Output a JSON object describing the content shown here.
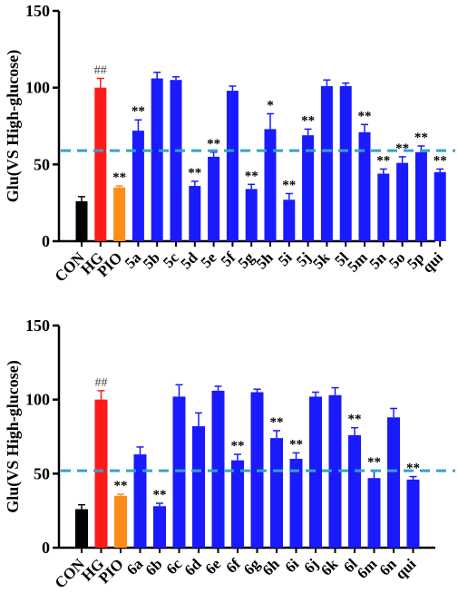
{
  "colors": {
    "control": "#000000",
    "high_glucose": "#ff1a1a",
    "pioglitazone": "#ff8c1a",
    "compound": "#1a1aff",
    "reference_line": "#3aa0c8",
    "axis": "#000000"
  },
  "chart_data": [
    {
      "type": "bar",
      "ylabel": "Glu(VS High-glucose)",
      "ylim": [
        0,
        150
      ],
      "yticks": [
        0,
        50,
        100,
        150
      ],
      "grid": false,
      "reference_line": 59,
      "categories": [
        "CON",
        "HG",
        "PIO",
        "5a",
        "5b",
        "5c",
        "5d",
        "5e",
        "5f",
        "5g",
        "5h",
        "5i",
        "5j",
        "5k",
        "5l",
        "5m",
        "5n",
        "5o",
        "5p",
        "qui"
      ],
      "values": [
        26,
        100,
        35,
        72,
        106,
        105,
        36,
        55,
        98,
        34,
        73,
        27,
        69,
        101,
        101,
        71,
        44,
        51,
        58,
        45
      ],
      "errors": [
        3,
        6,
        1,
        7,
        4,
        2,
        3,
        3,
        3,
        3,
        10,
        4,
        4,
        4,
        2,
        5,
        3,
        4,
        4,
        2
      ],
      "annotations": [
        "",
        "##",
        "**",
        "**",
        "",
        "",
        "**",
        "**",
        "",
        "**",
        "*",
        "**",
        "**",
        "",
        "",
        "**",
        "**",
        "**",
        "**",
        "**"
      ]
    },
    {
      "type": "bar",
      "ylabel": "Glu(VS High-glucose)",
      "ylim": [
        0,
        150
      ],
      "yticks": [
        0,
        50,
        100,
        150
      ],
      "grid": false,
      "reference_line": 52,
      "categories": [
        "CON",
        "HG",
        "PIO",
        "6a",
        "6b",
        "6c",
        "6d",
        "6e",
        "6f",
        "6g",
        "6h",
        "6i",
        "6j",
        "6k",
        "6l",
        "6m",
        "6n",
        "qui"
      ],
      "values": [
        26,
        100,
        35,
        63,
        28,
        102,
        82,
        106,
        59,
        105,
        74,
        60,
        102,
        103,
        76,
        47,
        88,
        46
      ],
      "errors": [
        3,
        6,
        1,
        5,
        2,
        8,
        9,
        3,
        4,
        2,
        5,
        4,
        3,
        5,
        5,
        5,
        6,
        2
      ],
      "annotations": [
        "",
        "##",
        "**",
        "",
        "**",
        "",
        "",
        "",
        "**",
        "",
        "**",
        "**",
        "",
        "",
        "**",
        "**",
        "",
        "**"
      ]
    }
  ]
}
